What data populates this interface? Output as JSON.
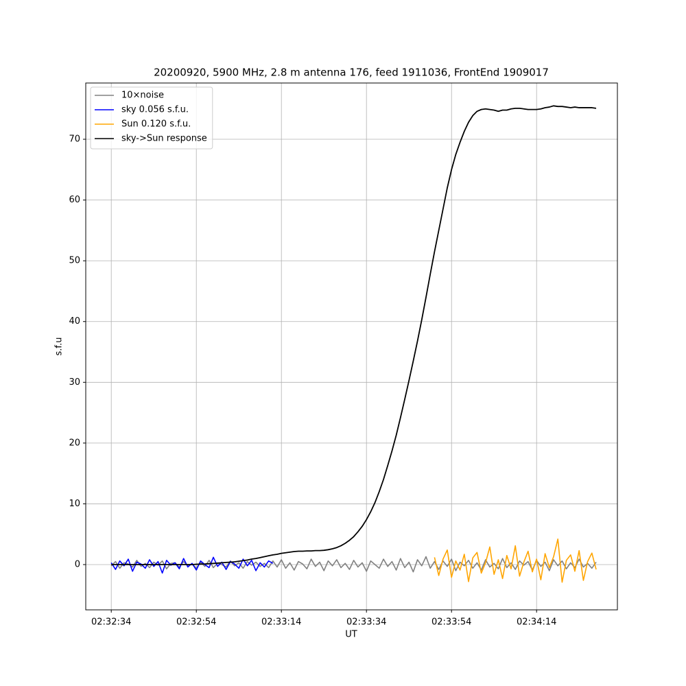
{
  "chart_data": {
    "type": "line",
    "title": "20200920, 5900 MHz, 2.8 m antenna 176, feed 1911036, FrontEnd 1909017",
    "xlabel": "UT",
    "ylabel": "s.f.u",
    "x": [
      "02:32:34",
      "02:32:35",
      "02:32:36",
      "02:32:37",
      "02:32:38",
      "02:32:39",
      "02:32:40",
      "02:32:41",
      "02:32:42",
      "02:32:43",
      "02:32:44",
      "02:32:45",
      "02:32:46",
      "02:32:47",
      "02:32:48",
      "02:32:49",
      "02:32:50",
      "02:32:51",
      "02:32:52",
      "02:32:53",
      "02:32:54",
      "02:32:55",
      "02:32:56",
      "02:32:57",
      "02:32:58",
      "02:32:59",
      "02:33:00",
      "02:33:01",
      "02:33:02",
      "02:33:03",
      "02:33:04",
      "02:33:05",
      "02:33:06",
      "02:33:07",
      "02:33:08",
      "02:33:09",
      "02:33:10",
      "02:33:11",
      "02:33:12",
      "02:33:13",
      "02:33:14",
      "02:33:15",
      "02:33:16",
      "02:33:17",
      "02:33:18",
      "02:33:19",
      "02:33:20",
      "02:33:21",
      "02:33:22",
      "02:33:23",
      "02:33:24",
      "02:33:25",
      "02:33:26",
      "02:33:27",
      "02:33:28",
      "02:33:29",
      "02:33:30",
      "02:33:31",
      "02:33:32",
      "02:33:33",
      "02:33:34",
      "02:33:35",
      "02:33:36",
      "02:33:37",
      "02:33:38",
      "02:33:39",
      "02:33:40",
      "02:33:41",
      "02:33:42",
      "02:33:43",
      "02:33:44",
      "02:33:45",
      "02:33:46",
      "02:33:47",
      "02:33:48",
      "02:33:49",
      "02:33:50",
      "02:33:51",
      "02:33:52",
      "02:33:53",
      "02:33:54",
      "02:33:55",
      "02:33:56",
      "02:33:57",
      "02:33:58",
      "02:33:59",
      "02:34:00",
      "02:34:01",
      "02:34:02",
      "02:34:03",
      "02:34:04",
      "02:34:05",
      "02:34:06",
      "02:34:07",
      "02:34:08",
      "02:34:09",
      "02:34:10",
      "02:34:11",
      "02:34:12",
      "02:34:13",
      "02:34:14",
      "02:34:15",
      "02:34:16",
      "02:34:17",
      "02:34:18",
      "02:34:19",
      "02:34:20",
      "02:34:21",
      "02:34:22",
      "02:34:23",
      "02:34:24",
      "02:34:25",
      "02:34:26",
      "02:34:27",
      "02:34:28"
    ],
    "series": [
      {
        "name": "10×noise",
        "color": "#808080",
        "values": [
          -0.2,
          0.5,
          -0.6,
          0.3,
          0.1,
          -0.4,
          0.7,
          -0.3,
          0.2,
          -0.5,
          0.4,
          -0.1,
          0.6,
          -0.7,
          0.2,
          0.3,
          -0.4,
          0.5,
          -0.2,
          0.1,
          -0.6,
          0.4,
          -0.3,
          0.7,
          -0.5,
          0.2,
          0.0,
          -0.4,
          0.6,
          -0.2,
          0.3,
          -0.6,
          0.5,
          -0.1,
          0.4,
          -0.3,
          0.2,
          -0.5,
          0.6,
          -0.4,
          0.8,
          -0.6,
          0.3,
          -0.9,
          0.5,
          0.1,
          -0.7,
          0.9,
          -0.3,
          0.4,
          -1.0,
          0.6,
          -0.2,
          0.8,
          -0.5,
          0.2,
          -0.8,
          0.7,
          -0.4,
          0.3,
          -1.1,
          0.6,
          0.0,
          -0.6,
          0.9,
          -0.3,
          0.5,
          -0.9,
          1.0,
          -0.5,
          0.4,
          -1.2,
          0.8,
          -0.2,
          1.3,
          -0.6,
          0.5,
          -0.8,
          0.6,
          -0.3,
          0.9,
          -1.0,
          0.4,
          -0.2,
          0.7,
          -0.6,
          0.3,
          -0.9,
          0.8,
          -0.4,
          0.2,
          -0.7,
          1.0,
          -0.5,
          0.3,
          -0.8,
          0.6,
          -0.1,
          0.5,
          -0.9,
          0.7,
          -0.3,
          0.4,
          -1.0,
          0.8,
          -0.2,
          0.6,
          -0.7,
          0.3,
          -0.5,
          0.9,
          -0.4,
          0.2,
          -0.6,
          0.4
        ]
      },
      {
        "name": "sky 0.056 s.f.u.",
        "color": "#0000ff",
        "values": [
          0.3,
          -0.8,
          0.6,
          -0.2,
          0.9,
          -1.1,
          0.4,
          0.1,
          -0.6,
          0.8,
          -0.3,
          0.5,
          -1.4,
          0.7,
          -0.1,
          0.3,
          -0.7,
          1.0,
          -0.4,
          0.2,
          -0.9,
          0.6,
          0.0,
          -0.5,
          1.2,
          -0.3,
          0.4,
          -0.8,
          0.5,
          0.1,
          -0.6,
          0.9,
          -0.2,
          0.7,
          -1.0,
          0.3,
          -0.4,
          0.6,
          0.2,
          null,
          null,
          null,
          null,
          null,
          null,
          null,
          null,
          null,
          null,
          null,
          null,
          null,
          null,
          null,
          null,
          null,
          null,
          null,
          null,
          null,
          null,
          null,
          null,
          null,
          null,
          null,
          null,
          null,
          null,
          null,
          null,
          null,
          null,
          null,
          null,
          null,
          null,
          null,
          null,
          null,
          null,
          null,
          null,
          null,
          null,
          null,
          null,
          null,
          null,
          null,
          null,
          null,
          null,
          null,
          null,
          null,
          null,
          null,
          null,
          null,
          null,
          null,
          null,
          null,
          null,
          null,
          null,
          null,
          null,
          null,
          null,
          null,
          null,
          null,
          null
        ]
      },
      {
        "name": "Sun 0.120 s.f.u.",
        "color": "#ffa500",
        "values": [
          null,
          null,
          null,
          null,
          null,
          null,
          null,
          null,
          null,
          null,
          null,
          null,
          null,
          null,
          null,
          null,
          null,
          null,
          null,
          null,
          null,
          null,
          null,
          null,
          null,
          null,
          null,
          null,
          null,
          null,
          null,
          null,
          null,
          null,
          null,
          null,
          null,
          null,
          null,
          null,
          null,
          null,
          null,
          null,
          null,
          null,
          null,
          null,
          null,
          null,
          null,
          null,
          null,
          null,
          null,
          null,
          null,
          null,
          null,
          null,
          null,
          null,
          null,
          null,
          null,
          null,
          null,
          null,
          null,
          null,
          null,
          null,
          null,
          null,
          null,
          null,
          1.2,
          -1.8,
          0.9,
          2.4,
          -2.1,
          0.6,
          -0.9,
          1.7,
          -2.8,
          1.1,
          2.0,
          -1.4,
          0.3,
          2.9,
          -1.6,
          0.8,
          -2.3,
          1.5,
          -0.7,
          3.1,
          -1.9,
          0.4,
          2.2,
          -1.2,
          0.9,
          -2.5,
          1.8,
          -0.5,
          1.3,
          4.2,
          -2.9,
          0.7,
          1.6,
          -1.1,
          2.3,
          -2.6,
          0.5,
          1.9,
          -0.8
        ]
      },
      {
        "name": "sky->Sun response",
        "color": "#000000",
        "values": [
          0,
          0,
          0,
          0,
          0,
          0,
          0,
          0,
          0,
          0,
          0,
          0,
          0,
          0,
          0,
          0,
          0,
          0,
          0,
          0,
          0.05,
          0.08,
          0.1,
          0.15,
          0.2,
          0.25,
          0.3,
          0.35,
          0.4,
          0.45,
          0.55,
          0.65,
          0.75,
          0.9,
          1.0,
          1.15,
          1.3,
          1.45,
          1.6,
          1.7,
          1.85,
          1.95,
          2.05,
          2.15,
          2.2,
          2.2,
          2.25,
          2.25,
          2.3,
          2.3,
          2.35,
          2.45,
          2.6,
          2.8,
          3.1,
          3.5,
          4.0,
          4.6,
          5.4,
          6.3,
          7.4,
          8.7,
          10.2,
          12.0,
          14.0,
          16.3,
          18.7,
          21.3,
          24.2,
          27.2,
          30.3,
          33.5,
          36.8,
          40.3,
          44,
          47.8,
          51.5,
          55,
          58.5,
          62,
          65,
          67.5,
          69.5,
          71.3,
          72.8,
          73.9,
          74.6,
          74.9,
          75.0,
          74.9,
          74.8,
          74.6,
          74.8,
          74.8,
          75,
          75.1,
          75.1,
          75,
          74.9,
          74.9,
          74.9,
          75,
          75.2,
          75.3,
          75.5,
          75.4,
          75.4,
          75.3,
          75.2,
          75.3,
          75.2,
          75.2,
          75.2,
          75.2,
          75.1
        ]
      }
    ],
    "xlim": [
      "02:32:28",
      "02:34:33"
    ],
    "xticks": [
      "02:32:34",
      "02:32:54",
      "02:33:14",
      "02:33:34",
      "02:33:54",
      "02:34:14"
    ],
    "ylim": [
      -7.45,
      79.26
    ],
    "yticks": [
      0,
      10,
      20,
      30,
      40,
      50,
      60,
      70
    ],
    "grid": true,
    "legend": "upper left"
  }
}
